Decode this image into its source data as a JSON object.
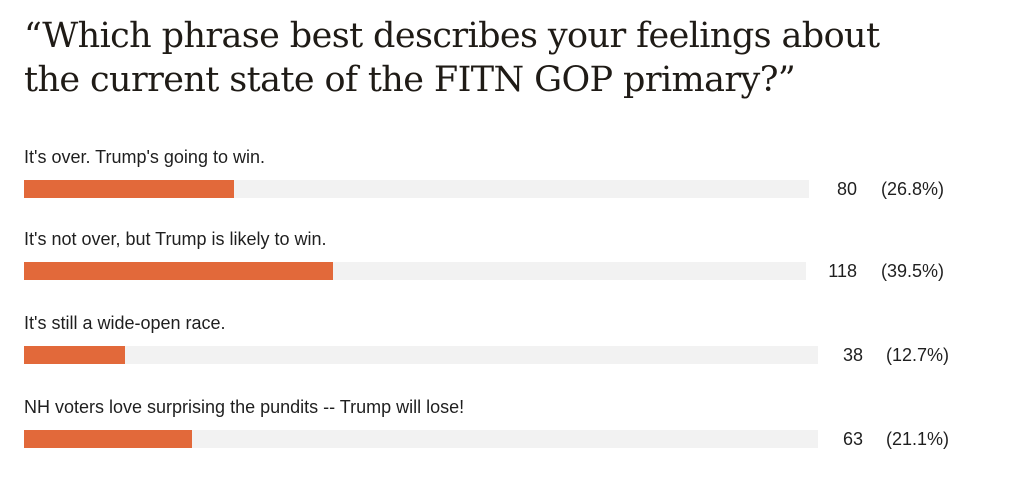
{
  "poll": {
    "question": "“Which phrase best describes your feelings about the current state of the FITN GOP primary?”",
    "bar_color": "#e2693a",
    "track_color": "#f2f2f2",
    "options": [
      {
        "label": "It's over. Trump's going to win.",
        "count": "80",
        "percent_label": "(26.8%)",
        "percent": 26.8
      },
      {
        "label": "It's not over, but Trump is likely to win.",
        "count": "118",
        "percent_label": "(39.5%)",
        "percent": 39.5
      },
      {
        "label": "It's still a wide-open race.",
        "count": "38",
        "percent_label": "(12.7%)",
        "percent": 12.7
      },
      {
        "label": "NH voters love surprising the pundits -- Trump will lose!",
        "count": "63",
        "percent_label": "(21.1%)",
        "percent": 21.1
      }
    ]
  }
}
